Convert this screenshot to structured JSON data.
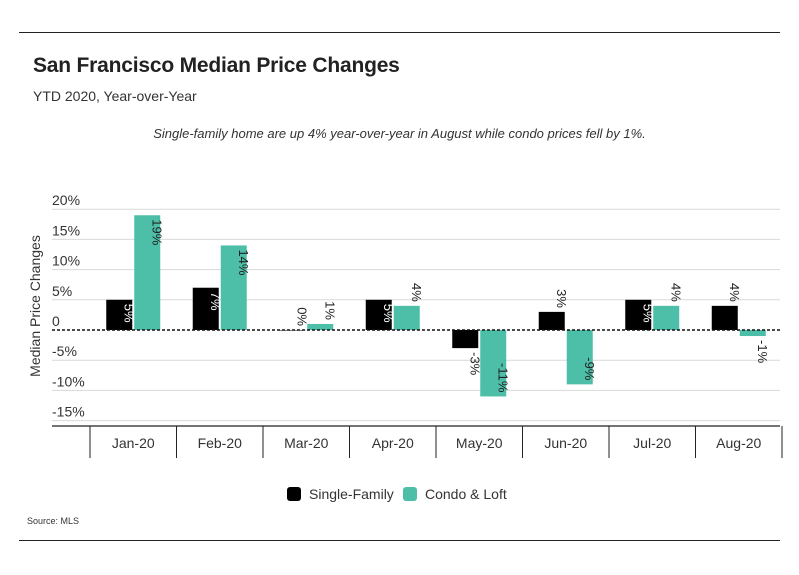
{
  "header": {
    "title": "San Francisco Median Price Changes",
    "subtitle": "YTD 2020, Year-over-Year",
    "annotation": "Single-family home are up 4% year-over-year in August while condo prices fell by 1%.",
    "source": "Source:  MLS"
  },
  "colors": {
    "single_family": "#000000",
    "condo_loft": "#4dbfa8"
  },
  "chart_data": {
    "type": "bar",
    "title": "San Francisco Median Price Changes",
    "subtitle": "YTD 2020, Year-over-Year",
    "xlabel": "",
    "ylabel": "Median Price Changes",
    "categories": [
      "Jan-20",
      "Feb-20",
      "Mar-20",
      "Apr-20",
      "May-20",
      "Jun-20",
      "Jul-20",
      "Aug-20"
    ],
    "series": [
      {
        "name": "Single-Family",
        "values": [
          5,
          7,
          0,
          5,
          -3,
          3,
          5,
          4
        ],
        "labels": [
          "5%",
          "7%",
          "0%",
          "5%",
          "-3%",
          "3%",
          "5%",
          "4%"
        ]
      },
      {
        "name": "Condo & Loft",
        "values": [
          19,
          14,
          1,
          4,
          -11,
          -9,
          4,
          -1
        ],
        "labels": [
          "19%",
          "14%",
          "1%",
          "4%",
          "-11%",
          "-9%",
          "4%",
          "-1%"
        ]
      }
    ],
    "ylim": [
      -15,
      20
    ],
    "yticks": [
      20,
      15,
      10,
      5,
      0,
      -5,
      -10,
      -15
    ],
    "ytick_labels": [
      "20%",
      "15%",
      "10%",
      "5%",
      "0",
      "-5%",
      "-10%",
      "-15%"
    ],
    "grid": true,
    "legend": "bottom-center"
  }
}
